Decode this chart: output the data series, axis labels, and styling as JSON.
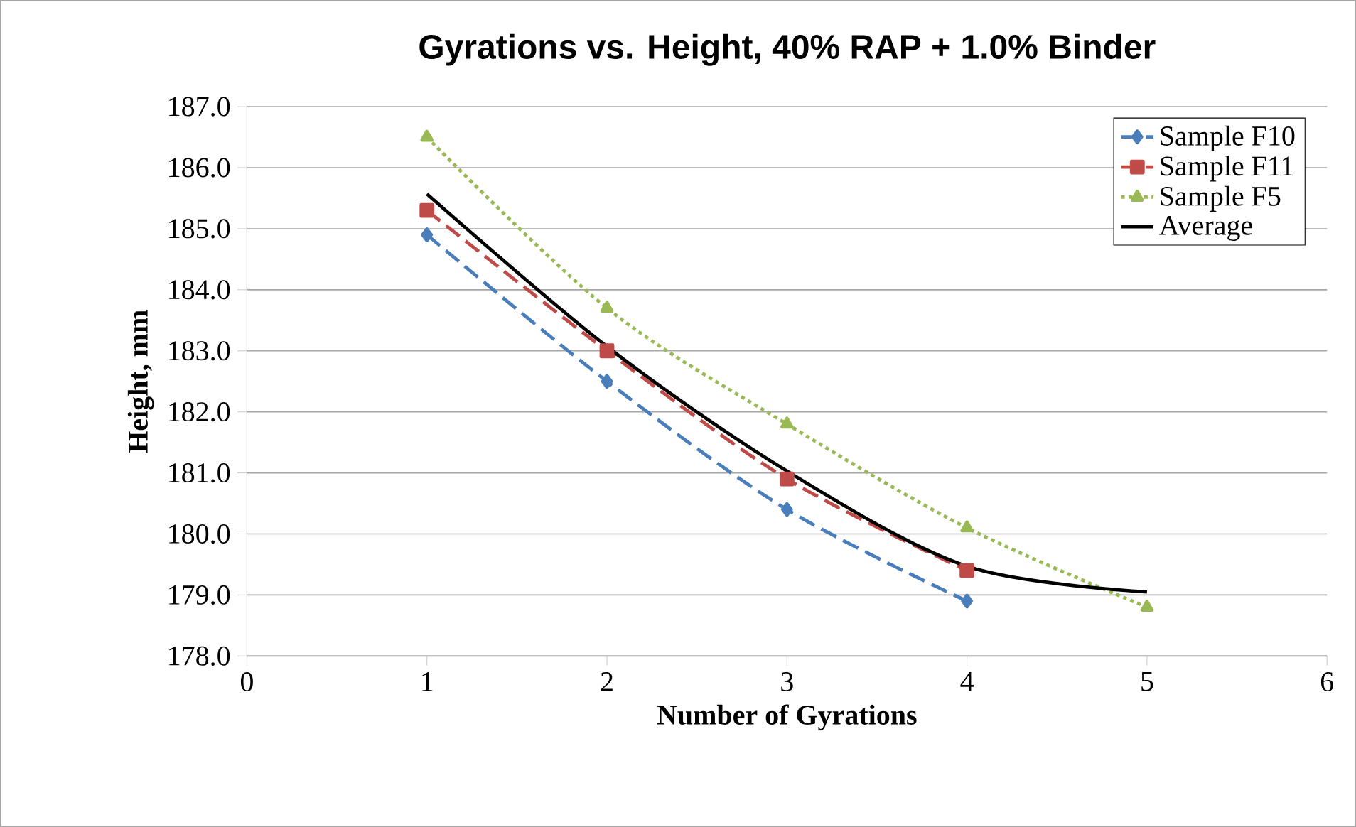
{
  "chart_data": {
    "type": "line",
    "title": "Gyrations vs. Height, 40% RAP + 1.0% Binder",
    "xlabel": "Number of Gyrations",
    "ylabel": "Height, mm",
    "xlim": [
      0,
      6
    ],
    "xticks": [
      0,
      1,
      2,
      3,
      4,
      5,
      6
    ],
    "ylim": [
      178,
      187
    ],
    "yticks": [
      {
        "value": 178,
        "label": "178.0"
      },
      {
        "value": 179,
        "label": "179.0"
      },
      {
        "value": 180,
        "label": "180.0"
      },
      {
        "value": 181,
        "label": "181.0"
      },
      {
        "value": 182,
        "label": "182.0"
      },
      {
        "value": 183,
        "label": "183.0"
      },
      {
        "value": 184,
        "label": "184.0"
      },
      {
        "value": 185,
        "label": "185.0"
      },
      {
        "value": 186,
        "label": "186.0"
      },
      {
        "value": 187,
        "label": "187.0"
      }
    ],
    "grid": "y",
    "legend": "top right",
    "series": [
      {
        "name": "Sample F10",
        "color": "#4a7ebb",
        "marker": "diamond",
        "line_style": "dashed",
        "x": [
          1,
          2,
          3,
          4
        ],
        "values": [
          184.9,
          182.5,
          180.4,
          178.9
        ]
      },
      {
        "name": "Sample F11",
        "color": "#be4b48",
        "marker": "square",
        "line_style": "dashed",
        "x": [
          1,
          2,
          3,
          4
        ],
        "values": [
          185.3,
          183.0,
          180.9,
          179.4
        ]
      },
      {
        "name": "Sample F5",
        "color": "#98b954",
        "marker": "triangle",
        "line_style": "dotted",
        "x": [
          1,
          2,
          3,
          4,
          5
        ],
        "values": [
          186.5,
          183.7,
          181.8,
          180.1,
          178.8
        ]
      },
      {
        "name": "Average",
        "color": "#000000",
        "marker": "none",
        "line_style": "solid",
        "x": [
          1,
          2,
          3,
          4,
          5
        ],
        "values": [
          185.57,
          183.07,
          181.03,
          179.47,
          179.05
        ]
      }
    ]
  }
}
